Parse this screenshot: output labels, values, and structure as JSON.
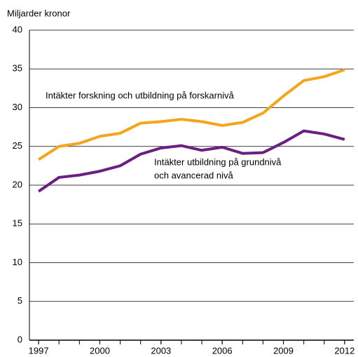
{
  "chart_data": {
    "type": "line",
    "y_label": "Miljarder kronor",
    "x": [
      1997,
      1998,
      1999,
      2000,
      2001,
      2002,
      2003,
      2004,
      2005,
      2006,
      2007,
      2008,
      2009,
      2010,
      2011,
      2012
    ],
    "series": [
      {
        "color": "#f4a51c",
        "values": [
          23.3,
          25.0,
          25.4,
          26.3,
          26.7,
          28.0,
          28.2,
          28.5,
          28.2,
          27.7,
          28.1,
          29.3,
          31.5,
          33.5,
          34.0,
          34.9
        ]
      },
      {
        "color": "#6a1f82",
        "values": [
          19.2,
          21.0,
          21.3,
          21.8,
          22.5,
          24.0,
          24.8,
          25.1,
          24.5,
          24.9,
          24.1,
          24.2,
          25.5,
          27.0,
          26.6,
          25.9
        ]
      }
    ],
    "annotations": [
      {
        "lines": [
          "Intäkter forskning och utbildning på forskarnivå"
        ]
      },
      {
        "lines": [
          "Intäkter utbildning på grundnivå",
          "och avancerad nivå"
        ]
      }
    ],
    "xlim": [
      1996.55,
      2012.45
    ],
    "xticks": [
      1997,
      2000,
      2003,
      2006,
      2009,
      2012
    ],
    "ylim": [
      0,
      40
    ],
    "yticks": [
      0,
      5,
      10,
      15,
      20,
      25,
      30,
      35,
      40
    ],
    "grid": true
  }
}
